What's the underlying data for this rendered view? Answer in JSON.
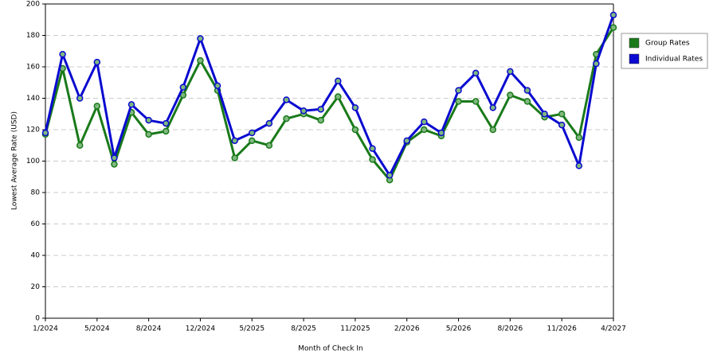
{
  "chart_data": {
    "type": "line",
    "x_label": "Month of Check In",
    "y_label": "Lowest Average Rate (USD)",
    "categories": [
      "1/2024",
      null,
      null,
      "5/2024",
      null,
      null,
      "8/2024",
      null,
      null,
      "12/2024",
      null,
      null,
      "5/2025",
      null,
      null,
      "8/2025",
      null,
      null,
      "11/2025",
      null,
      null,
      "2/2026",
      null,
      null,
      "5/2026",
      null,
      null,
      "8/2026",
      null,
      null,
      "11/2026",
      null,
      null,
      "4/2027"
    ],
    "series": [
      {
        "name": "Group Rates",
        "color": "#1a7a1a",
        "values": [
          117,
          159,
          110,
          135,
          98,
          131,
          117,
          119,
          142,
          164,
          145,
          102,
          113,
          110,
          127,
          130,
          126,
          141,
          120,
          101,
          88,
          112,
          120,
          116,
          138,
          138,
          120,
          142,
          138,
          128,
          130,
          115,
          168,
          185
        ]
      },
      {
        "name": "Individual Rates",
        "color": "#0a0ad0",
        "values": [
          118,
          168,
          140,
          163,
          102,
          136,
          126,
          124,
          147,
          178,
          148,
          113,
          118,
          124,
          139,
          132,
          133,
          151,
          134,
          108,
          91,
          113,
          125,
          118,
          145,
          156,
          134,
          157,
          145,
          130,
          123,
          97,
          162,
          193
        ]
      }
    ],
    "ylim": [
      0,
      200
    ],
    "yticks": [
      0,
      20,
      40,
      60,
      80,
      100,
      120,
      140,
      160,
      180,
      200
    ],
    "grid": true,
    "legend": "right"
  }
}
